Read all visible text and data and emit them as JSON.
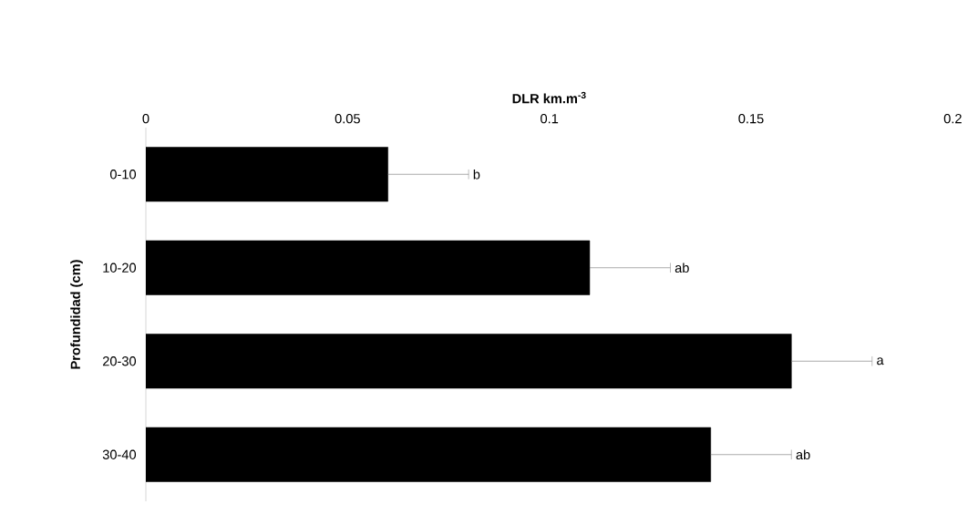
{
  "chart_data": {
    "type": "bar",
    "orientation": "horizontal",
    "xlabel": "DLR km.m$^{-3}$",
    "ylabel": "Profundidad (cm)",
    "categories": [
      "0-10",
      "10-20",
      "20-30",
      "30-40"
    ],
    "values": [
      0.06,
      0.11,
      0.16,
      0.14
    ],
    "errors": [
      0.02,
      0.02,
      0.02,
      0.02
    ],
    "color": "#000000",
    "xlim": [
      0,
      0.2
    ],
    "xticks": [
      0,
      0.05,
      0.1,
      0.15,
      0.2
    ],
    "grid": false,
    "annotations": [
      {
        "text": "b",
        "x": 0.08,
        "y": "0-10"
      },
      {
        "text": "ab",
        "x": 0.13,
        "y": "10-20"
      },
      {
        "text": "a",
        "x": 0.18,
        "y": "20-30"
      },
      {
        "text": "ab",
        "x": 0.16,
        "y": "30-40"
      }
    ]
  }
}
